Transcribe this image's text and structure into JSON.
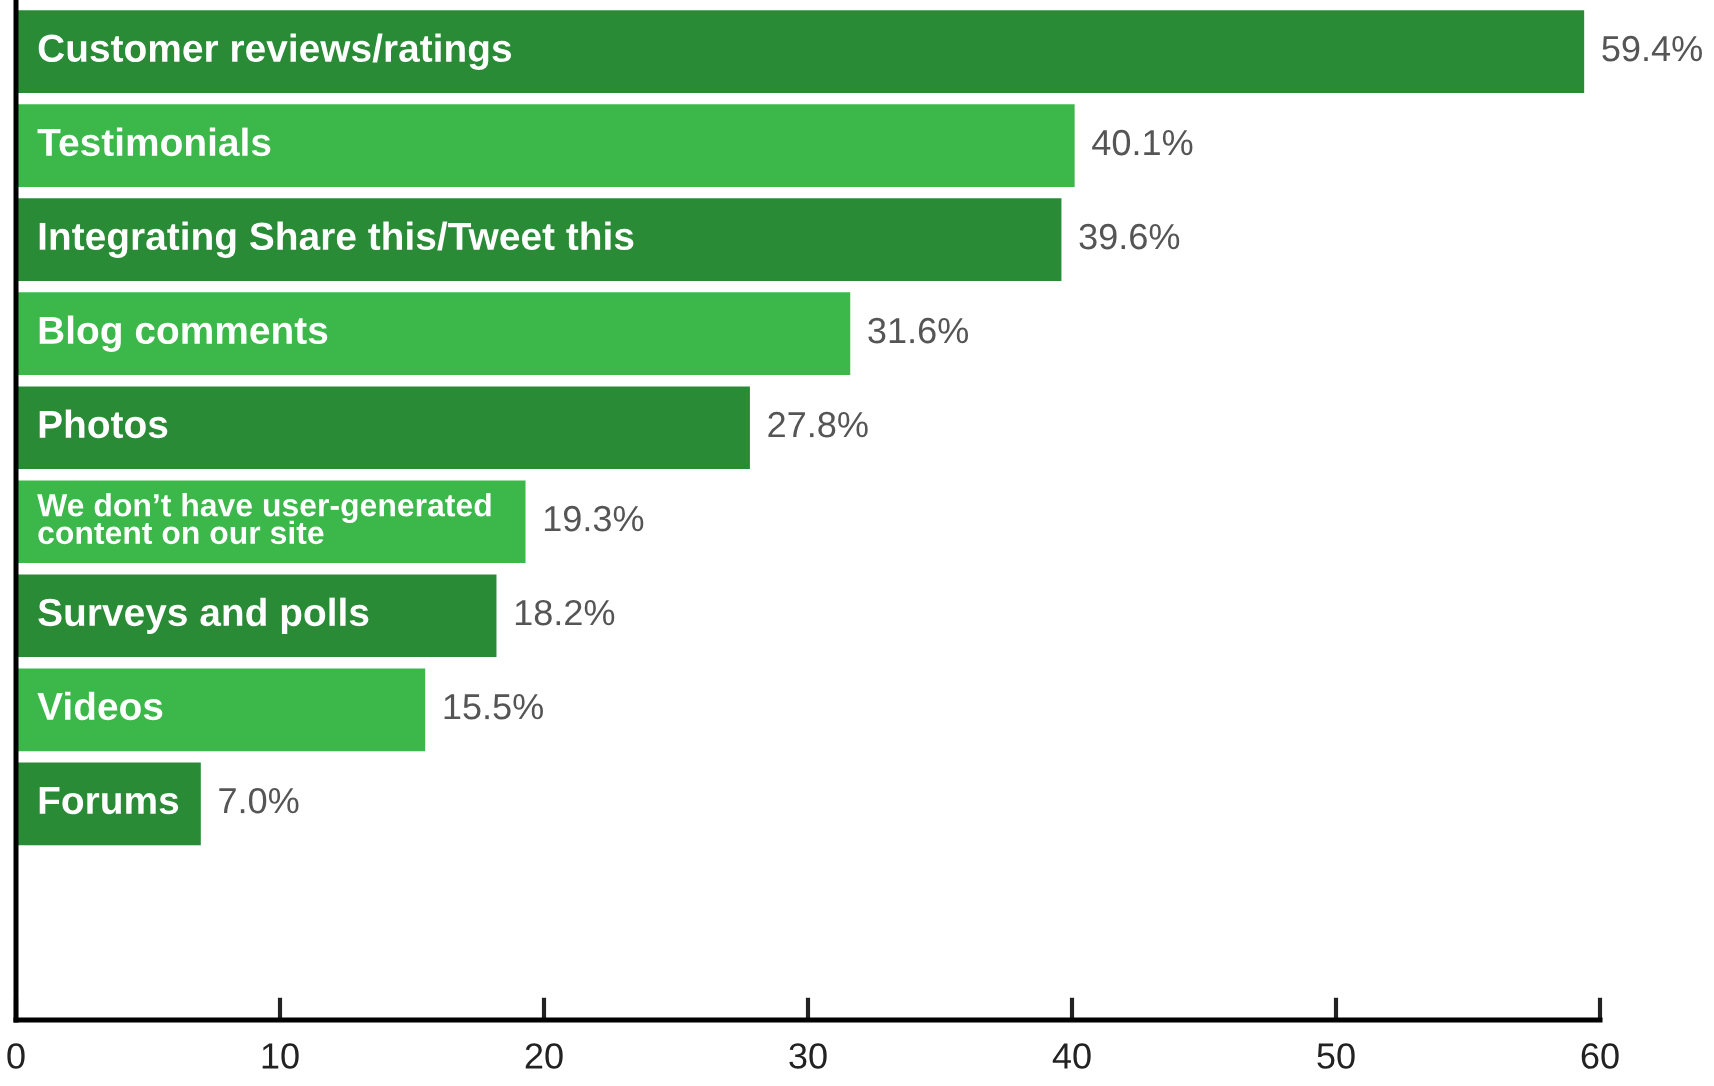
{
  "chart_data": {
    "type": "bar",
    "orientation": "horizontal",
    "categories": [
      "Customer reviews/ratings",
      "Testimonials",
      "Integrating Share this/Tweet this",
      "Blog comments",
      "Photos",
      "We don’t have user-generated\ncontent on our site",
      "Surveys and polls",
      "Videos",
      "Forums"
    ],
    "values": [
      59.4,
      40.1,
      39.6,
      31.6,
      27.8,
      19.3,
      18.2,
      15.5,
      7.0
    ],
    "colors": [
      "#2a8b36",
      "#3cb84a",
      "#2a8b36",
      "#3cb84a",
      "#2a8b36",
      "#3cb84a",
      "#2a8b36",
      "#3cb84a",
      "#2a8b36"
    ],
    "value_labels": [
      "59.4%",
      "40.1%",
      "39.6%",
      "31.6%",
      "27.8%",
      "19.3%",
      "18.2%",
      "15.5%",
      "7.0%"
    ],
    "xlim": [
      0,
      60
    ],
    "xticks": [
      0,
      10,
      20,
      30,
      40,
      50,
      60
    ],
    "grid": false,
    "legend": false
  }
}
